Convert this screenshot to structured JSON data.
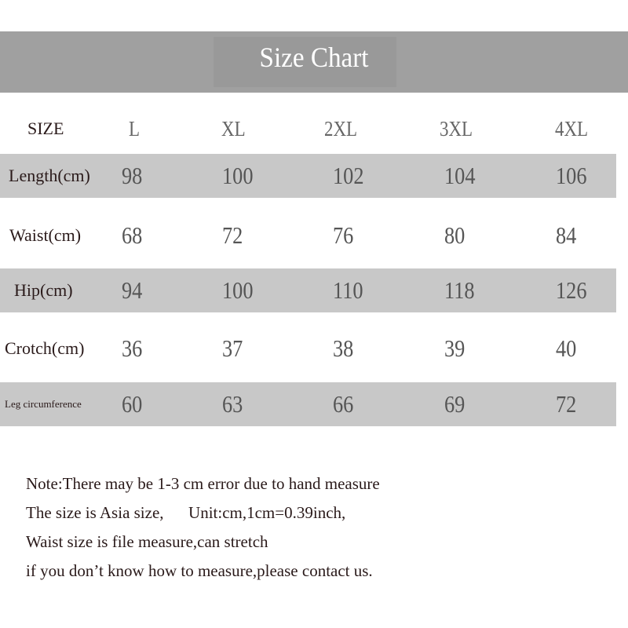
{
  "title": "Size Chart",
  "header": {
    "label": "SIZE",
    "sizes": [
      "L",
      "XL",
      "2XL",
      "3XL",
      "4XL"
    ]
  },
  "rows": [
    {
      "label": "Length(cm)",
      "values": [
        "98",
        "100",
        "102",
        "104",
        "106"
      ]
    },
    {
      "label": "Waist(cm)",
      "values": [
        "68",
        "72",
        "76",
        "80",
        "84"
      ]
    },
    {
      "label": "Hip(cm)",
      "values": [
        "94",
        "100",
        "110",
        "118",
        "126"
      ]
    },
    {
      "label": "Crotch(cm)",
      "values": [
        "36",
        "37",
        "38",
        "39",
        "40"
      ]
    },
    {
      "label": "Leg circumference",
      "values": [
        "60",
        "63",
        "66",
        "69",
        "72"
      ]
    }
  ],
  "notes": [
    "Note:There may be 1-3 cm error due to hand measure",
    "The size is Asia size,      Unit:cm,1cm=0.39inch,",
    "Waist size is file measure,can stretch",
    "if you don’t know how to measure,please contact us."
  ]
}
